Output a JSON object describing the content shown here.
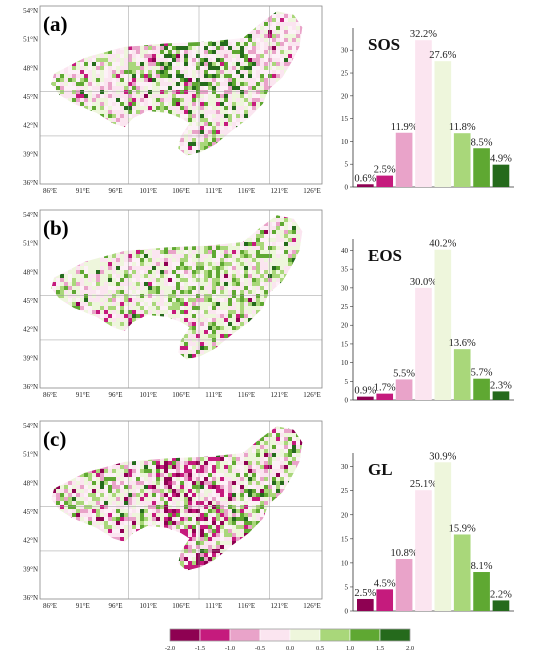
{
  "colors": [
    "#8e0152",
    "#c51b7d",
    "#e9a3c9",
    "#fbe5f0",
    "#eef6dc",
    "#a9d77a",
    "#5fa832",
    "#256a1c"
  ],
  "colorbar": {
    "ticks": [
      "-2.0",
      "-1.5",
      "-1.0",
      "-0.5",
      "0.0",
      "0.5",
      "1.0",
      "1.5",
      "2.0"
    ]
  },
  "map_axes": {
    "lat_labels": [
      "54°N",
      "51°N",
      "48°N",
      "45°N",
      "42°N",
      "39°N",
      "36°N"
    ],
    "lon_labels": [
      "86°E",
      "91°E",
      "96°E",
      "101°E",
      "106°E",
      "111°E",
      "116°E",
      "121°E",
      "126°E"
    ]
  },
  "chart_data": [
    {
      "type": "bar",
      "panel_label": "(a)",
      "title": "SOS",
      "categories": [
        "-2.0~-1.5",
        "-1.5~-1.0",
        "-1.0~-0.5",
        "-0.5~0.0",
        "0.0~0.5",
        "0.5~1.0",
        "1.0~1.5",
        "1.5~2.0"
      ],
      "values": [
        0.6,
        2.5,
        11.9,
        32.2,
        27.6,
        11.8,
        8.5,
        4.9
      ],
      "value_labels": [
        "0.6%",
        "2.5%",
        "11.9%",
        "32.2%",
        "27.6%",
        "11.8%",
        "8.5%",
        "4.9%"
      ],
      "ylim": [
        0,
        34
      ],
      "yticks": [
        0,
        5,
        10,
        15,
        20,
        25,
        30
      ]
    },
    {
      "type": "bar",
      "panel_label": "(b)",
      "title": "EOS",
      "categories": [
        "-2.0~-1.5",
        "-1.5~-1.0",
        "-1.0~-0.5",
        "-0.5~0.0",
        "0.0~0.5",
        "0.5~1.0",
        "1.0~1.5",
        "1.5~2.0"
      ],
      "values": [
        0.9,
        1.7,
        5.5,
        30.0,
        40.2,
        13.6,
        5.7,
        2.3
      ],
      "value_labels": [
        "0.9%",
        "1.7%",
        "5.5%",
        "30.0%",
        "40.2%",
        "13.6%",
        "5.7%",
        "2.3%"
      ],
      "ylim": [
        0,
        42
      ],
      "yticks": [
        0,
        5,
        10,
        15,
        20,
        25,
        30,
        35,
        40
      ]
    },
    {
      "type": "bar",
      "panel_label": "(c)",
      "title": "GL",
      "categories": [
        "-2.0~-1.5",
        "-1.5~-1.0",
        "-1.0~-0.5",
        "-0.5~0.0",
        "0.0~0.5",
        "0.5~1.0",
        "1.0~1.5",
        "1.5~2.0"
      ],
      "values": [
        2.5,
        4.5,
        10.8,
        25.1,
        30.9,
        15.9,
        8.1,
        2.2
      ],
      "value_labels": [
        "2.5%",
        "4.5%",
        "10.8%",
        "25.1%",
        "30.9%",
        "15.9%",
        "8.1%",
        "2.2%"
      ],
      "ylim": [
        0,
        32
      ],
      "yticks": [
        0,
        5,
        10,
        15,
        20,
        25,
        30
      ]
    }
  ]
}
